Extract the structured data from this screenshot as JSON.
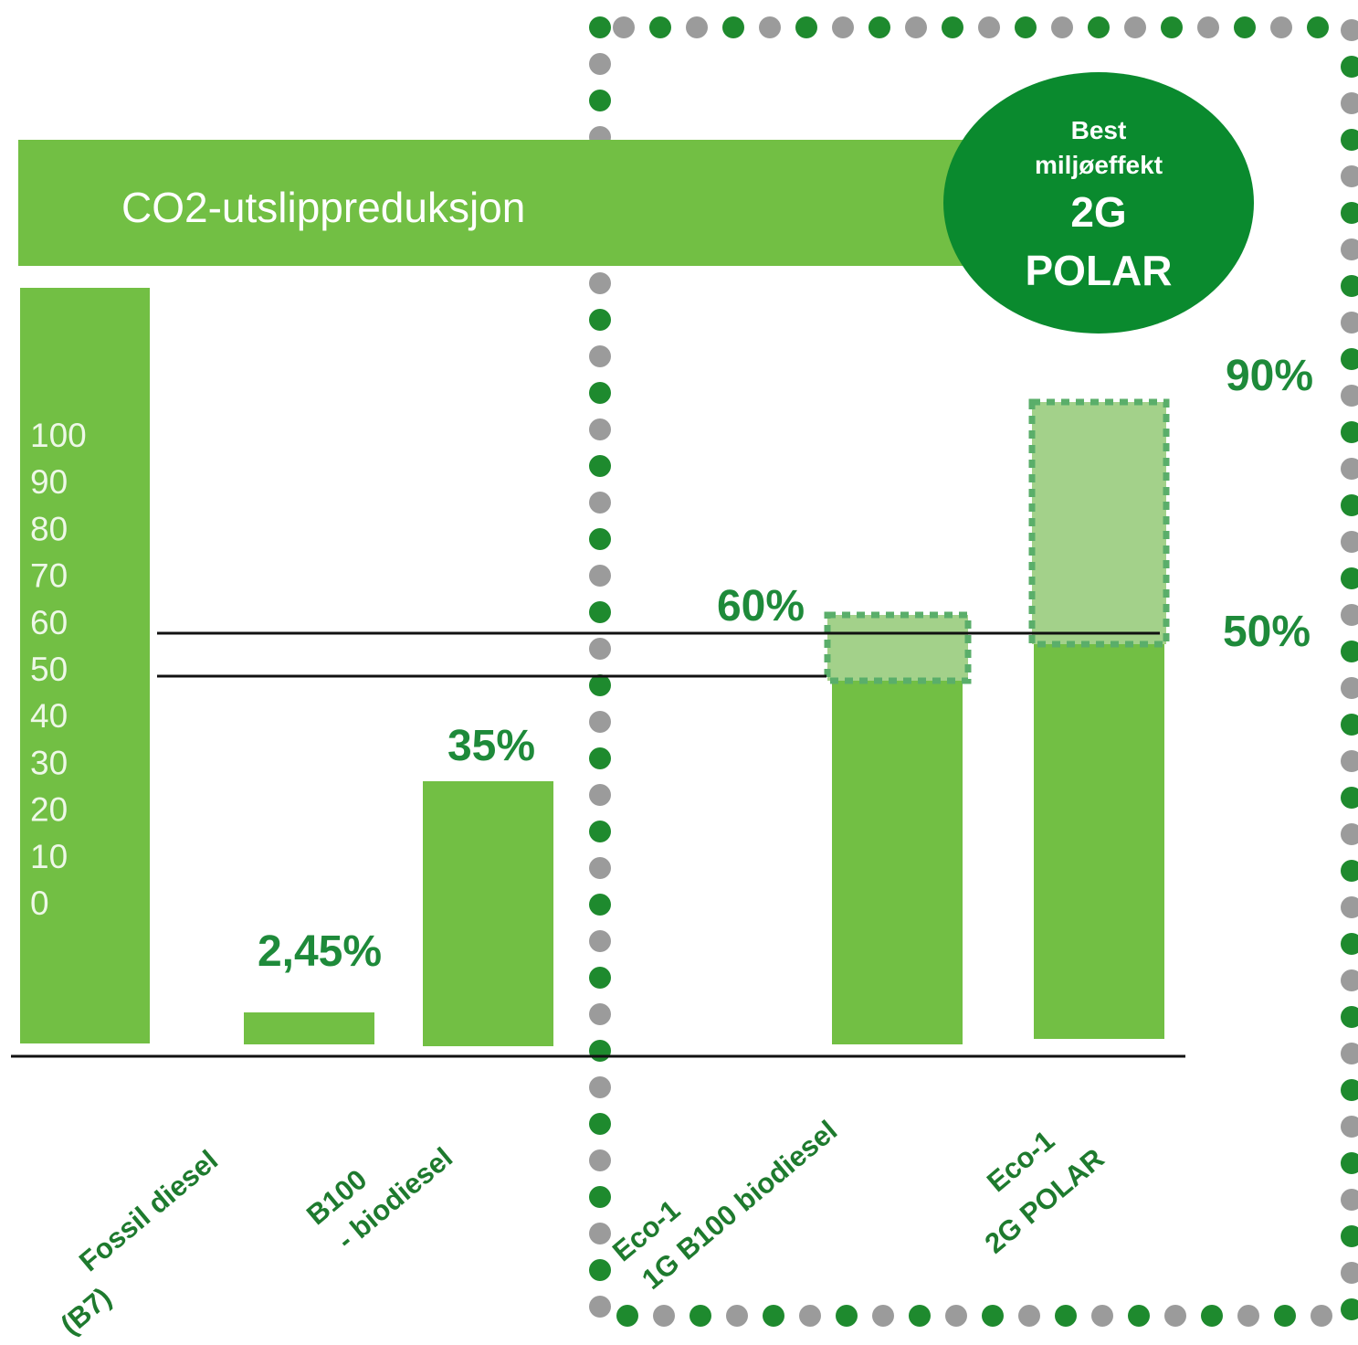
{
  "banner": {
    "title": "CO2-utslippreduksjon"
  },
  "badge": {
    "lines": [
      "Best",
      "miljøeffekt",
      "2G",
      "POLAR"
    ]
  },
  "scale": [
    "100",
    "90",
    "80",
    "70",
    "60",
    "50",
    "40",
    "30",
    "20",
    "10",
    "0"
  ],
  "bar_labels": [
    "2,45%",
    "35%",
    "60%",
    "90%",
    "50%"
  ],
  "categories": [
    [
      "Fossil diesel",
      "(B7)"
    ],
    [
      "B100",
      "- biodiesel"
    ],
    [
      "Eco-1",
      "1G B100 biodiesel"
    ],
    [
      "Eco-1",
      "2G POLAR"
    ]
  ]
}
